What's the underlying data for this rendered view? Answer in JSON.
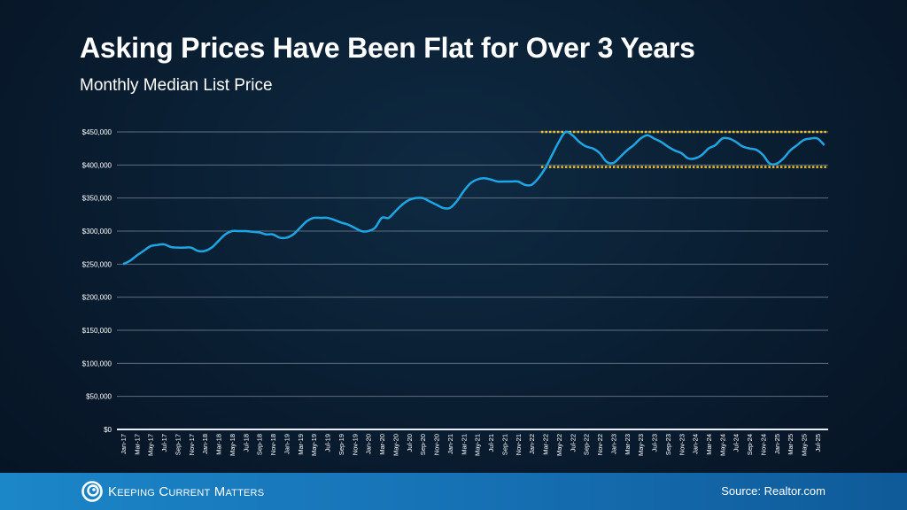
{
  "chart_data": {
    "type": "line",
    "title": "Asking Prices Have Been Flat for Over 3 Years",
    "subtitle": "Monthly Median List Price",
    "xlabel": "",
    "ylabel": "",
    "ylim": [
      0,
      450000
    ],
    "yticks": [
      "$0",
      "$50,000",
      "$100,000",
      "$150,000",
      "$200,000",
      "$250,000",
      "$300,000",
      "$350,000",
      "$400,000",
      "$450,000"
    ],
    "grid": true,
    "start_month": "Jan-17",
    "xtick_labels": [
      "Jan-17",
      "Mar-17",
      "May-17",
      "Jul-17",
      "Sep-17",
      "Nov-17",
      "Jan-18",
      "Mar-18",
      "May-18",
      "Jul-18",
      "Sep-18",
      "Nov-18",
      "Jan-19",
      "Mar-19",
      "May-19",
      "Jul-19",
      "Sep-19",
      "Nov-19",
      "Jan-20",
      "Mar-20",
      "May-20",
      "Jul-20",
      "Sep-20",
      "Nov-20",
      "Jan-21",
      "Mar-21",
      "May-21",
      "Jul-21",
      "Sep-21",
      "Nov-21",
      "Jan-22",
      "Mar-22",
      "May-22",
      "Jul-22",
      "Sep-22",
      "Nov-22",
      "Jan-23",
      "Mar-23",
      "May-23",
      "Jul-23",
      "Sep-23",
      "Nov-23",
      "Jan-24",
      "Mar-24",
      "May-24",
      "Jul-24",
      "Sep-24",
      "Nov-24",
      "Jan-25",
      "Mar-25",
      "May-25",
      "Jul-25"
    ],
    "series": [
      {
        "color": "#1ea5e3",
        "values": [
          250000,
          255000,
          263000,
          270000,
          277000,
          279000,
          280000,
          276000,
          275000,
          275000,
          275000,
          270000,
          270000,
          275000,
          285000,
          295000,
          300000,
          300000,
          300000,
          299000,
          298000,
          295000,
          295000,
          290000,
          290000,
          295000,
          305000,
          315000,
          320000,
          320000,
          320000,
          317000,
          313000,
          310000,
          305000,
          300000,
          300000,
          305000,
          320000,
          320000,
          330000,
          340000,
          347000,
          350000,
          350000,
          345000,
          340000,
          335000,
          335000,
          345000,
          360000,
          372000,
          378000,
          380000,
          378000,
          375000,
          375000,
          375000,
          375000,
          370000,
          370000,
          380000,
          395000,
          415000,
          435000,
          450000,
          445000,
          435000,
          428000,
          425000,
          418000,
          405000,
          403000,
          412000,
          422000,
          430000,
          440000,
          445000,
          440000,
          435000,
          428000,
          422000,
          418000,
          410000,
          410000,
          415000,
          425000,
          430000,
          440000,
          440000,
          435000,
          428000,
          425000,
          423000,
          415000,
          402000,
          402000,
          410000,
          422000,
          430000,
          438000,
          440000,
          440000,
          430000
        ]
      }
    ],
    "reference_lines": [
      {
        "value": 450000,
        "style": "dotted",
        "color": "#f0c22e",
        "from_month": "May-22"
      },
      {
        "value": 397000,
        "style": "dotted",
        "color": "#f0c22e",
        "from_month": "May-22"
      }
    ]
  },
  "footer": {
    "logo_text": "Keeping Current Matters",
    "source": "Source: Realtor.com"
  }
}
